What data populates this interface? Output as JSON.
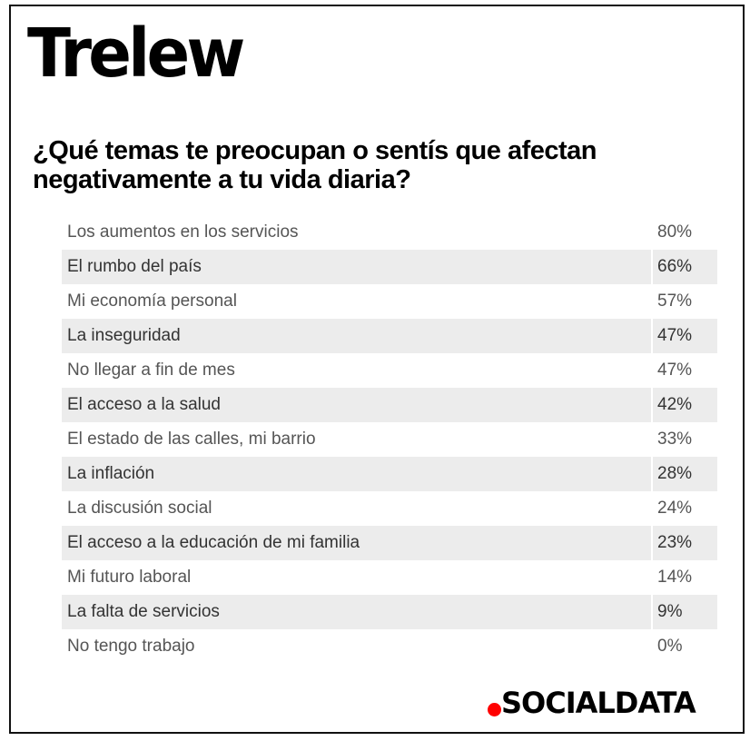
{
  "city": "Trelew",
  "question": "¿Qué temas te preocupan o sentís que afectan negativamente a tu vida diaria?",
  "rows": [
    {
      "label": "Los aumentos en los servicios",
      "value": "80%"
    },
    {
      "label": "El rumbo del país",
      "value": "66%"
    },
    {
      "label": "Mi economía personal",
      "value": "57%"
    },
    {
      "label": "La inseguridad",
      "value": "47%"
    },
    {
      "label": "No llegar a fin de mes",
      "value": "47%"
    },
    {
      "label": "El acceso a la salud",
      "value": "42%"
    },
    {
      "label": "El estado de las calles, mi barrio",
      "value": "33%"
    },
    {
      "label": "La inflación",
      "value": "28%"
    },
    {
      "label": "La discusión social",
      "value": "24%"
    },
    {
      "label": "El acceso a la educación de mi familia",
      "value": "23%"
    },
    {
      "label": "Mi futuro laboral",
      "value": "14%"
    },
    {
      "label": "La falta de servicios",
      "value": "9%"
    },
    {
      "label": "No tengo trabajo",
      "value": "0%"
    }
  ],
  "brand": {
    "name": "SOCIALDATA",
    "dot_color": "#ff0000"
  }
}
